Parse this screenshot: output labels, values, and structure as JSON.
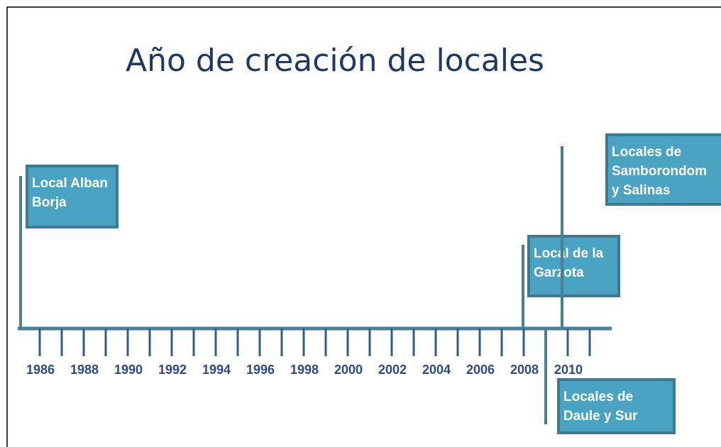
{
  "title": "Año de creación de locales",
  "years": [
    "1986",
    "1988",
    "1990",
    "1992",
    "1994",
    "1996",
    "1998",
    "2000",
    "2002",
    "2004",
    "2006",
    "2008",
    "2010"
  ],
  "events": [
    {
      "lines": [
        "Local Alban",
        "Borja"
      ]
    },
    {
      "lines": [
        "Local de la",
        "Garzota"
      ]
    },
    {
      "lines": [
        "Locales de",
        "Samborondom",
        "y Salinas"
      ]
    },
    {
      "lines": [
        "Locales de",
        "Daule  y Sur"
      ]
    }
  ]
}
